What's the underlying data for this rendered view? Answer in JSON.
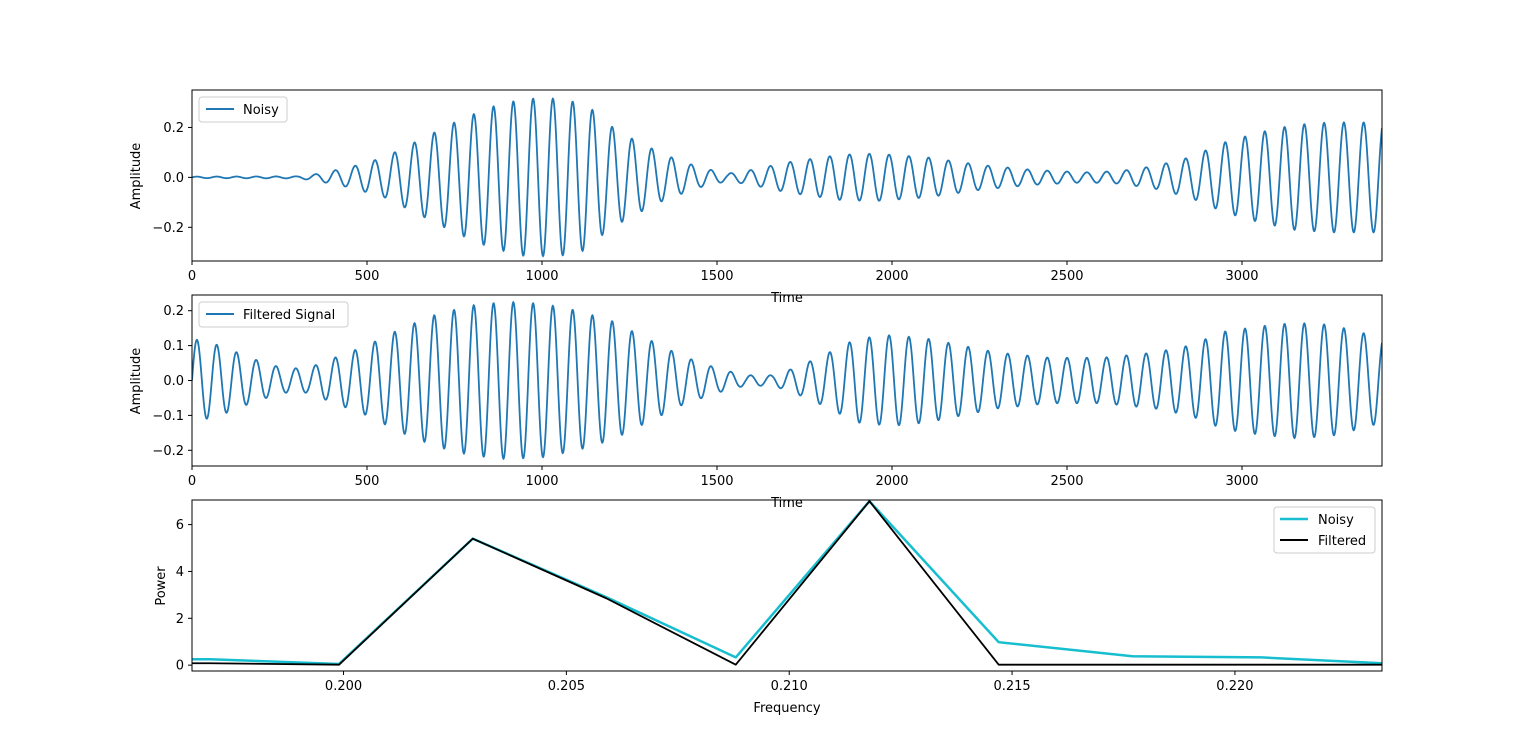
{
  "chart_data": [
    {
      "type": "line",
      "xlabel": "Time",
      "ylabel": "Amplitude",
      "xlim": [
        0,
        3400
      ],
      "ylim": [
        -0.335,
        0.35
      ],
      "xticks": [
        0,
        500,
        1000,
        1500,
        2000,
        2500,
        3000
      ],
      "yticks": [
        -0.2,
        0.0,
        0.2
      ],
      "grid": false,
      "legend": "upper-left",
      "period": 56.5,
      "envelope": [
        {
          "x": 0,
          "y": 0.003
        },
        {
          "x": 300,
          "y": 0.004
        },
        {
          "x": 350,
          "y": 0.012
        },
        {
          "x": 450,
          "y": 0.04
        },
        {
          "x": 550,
          "y": 0.08
        },
        {
          "x": 650,
          "y": 0.15
        },
        {
          "x": 750,
          "y": 0.22
        },
        {
          "x": 850,
          "y": 0.28
        },
        {
          "x": 950,
          "y": 0.315
        },
        {
          "x": 1050,
          "y": 0.315
        },
        {
          "x": 1130,
          "y": 0.29
        },
        {
          "x": 1180,
          "y": 0.22
        },
        {
          "x": 1250,
          "y": 0.16
        },
        {
          "x": 1350,
          "y": 0.09
        },
        {
          "x": 1450,
          "y": 0.04
        },
        {
          "x": 1530,
          "y": 0.015
        },
        {
          "x": 1600,
          "y": 0.03
        },
        {
          "x": 1700,
          "y": 0.06
        },
        {
          "x": 1850,
          "y": 0.09
        },
        {
          "x": 1950,
          "y": 0.095
        },
        {
          "x": 2100,
          "y": 0.08
        },
        {
          "x": 2250,
          "y": 0.05
        },
        {
          "x": 2400,
          "y": 0.03
        },
        {
          "x": 2550,
          "y": 0.02
        },
        {
          "x": 2650,
          "y": 0.025
        },
        {
          "x": 2750,
          "y": 0.045
        },
        {
          "x": 2850,
          "y": 0.08
        },
        {
          "x": 2950,
          "y": 0.14
        },
        {
          "x": 3050,
          "y": 0.18
        },
        {
          "x": 3150,
          "y": 0.21
        },
        {
          "x": 3250,
          "y": 0.22
        },
        {
          "x": 3400,
          "y": 0.22
        }
      ],
      "series": [
        {
          "name": "Noisy",
          "color": "#1f77b4"
        }
      ]
    },
    {
      "type": "line",
      "xlabel": "Time",
      "ylabel": "Amplitude",
      "xlim": [
        0,
        3400
      ],
      "ylim": [
        -0.245,
        0.245
      ],
      "xticks": [
        0,
        500,
        1000,
        1500,
        2000,
        2500,
        3000
      ],
      "yticks": [
        -0.2,
        -0.1,
        0.0,
        0.1,
        0.2
      ],
      "grid": false,
      "legend": "upper-left",
      "period": 56.5,
      "envelope": [
        {
          "x": 0,
          "y": 0.12
        },
        {
          "x": 80,
          "y": 0.1
        },
        {
          "x": 180,
          "y": 0.06
        },
        {
          "x": 260,
          "y": 0.035
        },
        {
          "x": 330,
          "y": 0.035
        },
        {
          "x": 420,
          "y": 0.07
        },
        {
          "x": 500,
          "y": 0.1
        },
        {
          "x": 600,
          "y": 0.15
        },
        {
          "x": 700,
          "y": 0.19
        },
        {
          "x": 800,
          "y": 0.215
        },
        {
          "x": 900,
          "y": 0.225
        },
        {
          "x": 1000,
          "y": 0.22
        },
        {
          "x": 1100,
          "y": 0.2
        },
        {
          "x": 1200,
          "y": 0.17
        },
        {
          "x": 1300,
          "y": 0.12
        },
        {
          "x": 1400,
          "y": 0.07
        },
        {
          "x": 1500,
          "y": 0.035
        },
        {
          "x": 1580,
          "y": 0.015
        },
        {
          "x": 1660,
          "y": 0.015
        },
        {
          "x": 1720,
          "y": 0.035
        },
        {
          "x": 1800,
          "y": 0.07
        },
        {
          "x": 1900,
          "y": 0.12
        },
        {
          "x": 2000,
          "y": 0.13
        },
        {
          "x": 2100,
          "y": 0.12
        },
        {
          "x": 2200,
          "y": 0.1
        },
        {
          "x": 2300,
          "y": 0.08
        },
        {
          "x": 2450,
          "y": 0.065
        },
        {
          "x": 2600,
          "y": 0.065
        },
        {
          "x": 2750,
          "y": 0.08
        },
        {
          "x": 2850,
          "y": 0.1
        },
        {
          "x": 2950,
          "y": 0.14
        },
        {
          "x": 3050,
          "y": 0.155
        },
        {
          "x": 3150,
          "y": 0.165
        },
        {
          "x": 3250,
          "y": 0.16
        },
        {
          "x": 3350,
          "y": 0.135
        },
        {
          "x": 3400,
          "y": 0.12
        }
      ],
      "series": [
        {
          "name": "Filtered Signal",
          "color": "#1f77b4"
        }
      ]
    },
    {
      "type": "line",
      "xlabel": "Frequency",
      "ylabel": "Power",
      "xlim": [
        0.1966,
        0.2233
      ],
      "ylim": [
        -0.25,
        7.05
      ],
      "xticks": [
        0.2,
        0.205,
        0.21,
        0.215,
        0.22
      ],
      "xtick_labels": [
        "0.200",
        "0.205",
        "0.210",
        "0.215",
        "0.220"
      ],
      "yticks": [
        0,
        2,
        4,
        6
      ],
      "grid": false,
      "legend": "upper-right",
      "series": [
        {
          "name": "Noisy",
          "color": "#17becf",
          "x": [
            0.1966,
            0.197,
            0.1999,
            0.2029,
            0.2059,
            0.2088,
            0.2118,
            0.2147,
            0.2177,
            0.2206,
            0.2233
          ],
          "y": [
            0.25,
            0.25,
            0.05,
            5.4,
            2.9,
            0.33,
            7.0,
            0.98,
            0.38,
            0.33,
            0.08
          ]
        },
        {
          "name": "Filtered",
          "color": "#000000",
          "x": [
            0.1966,
            0.197,
            0.1999,
            0.2029,
            0.2059,
            0.2088,
            0.2118,
            0.2147,
            0.2177,
            0.2206,
            0.2233
          ],
          "y": [
            0.08,
            0.08,
            0.02,
            5.4,
            2.85,
            0.02,
            7.0,
            0.02,
            0.02,
            0.02,
            0.02
          ]
        }
      ]
    }
  ]
}
